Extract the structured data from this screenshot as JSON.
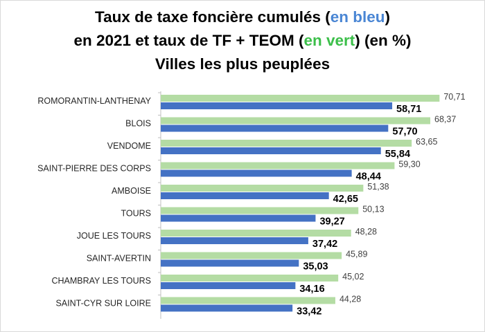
{
  "title": {
    "line1_a": "Taux de taxe foncière cumulés (",
    "line1_b": "en bleu",
    "line1_c": ")",
    "line2_a": "en 2021 et taux de TF + TEOM (",
    "line2_b": "en vert",
    "line2_c": ") (en %)",
    "line3": "Villes les plus peuplées"
  },
  "colors": {
    "blue": "#4472c4",
    "green": "#b4dca4",
    "title_blue": "#4a86d4",
    "title_green": "#3cbf4a"
  },
  "chart_data": {
    "type": "bar",
    "orientation": "horizontal",
    "title": "Taux de taxe foncière cumulés (en bleu) en 2021 et taux de TF + TEOM (en vert) (en %) Villes les plus peuplées",
    "categories": [
      "ROMORANTIN-LANTHENAY",
      "BLOIS",
      "VENDOME",
      "SAINT-PIERRE DES CORPS",
      "AMBOISE",
      "TOURS",
      "JOUE LES TOURS",
      "SAINT-AVERTIN",
      "CHAMBRAY LES TOURS",
      "SAINT-CYR SUR LOIRE"
    ],
    "series": [
      {
        "color": "#b4dca4",
        "values": [
          70.71,
          68.37,
          63.65,
          59.3,
          51.38,
          50.13,
          48.28,
          45.89,
          45.02,
          44.28
        ],
        "labels": [
          "70,71",
          "68,37",
          "63,65",
          "59,30",
          "51,38",
          "50,13",
          "48,28",
          "45,89",
          "45,02",
          "44,28"
        ]
      },
      {
        "color": "#4472c4",
        "values": [
          58.71,
          57.7,
          55.84,
          48.44,
          42.65,
          39.27,
          37.42,
          35.03,
          34.16,
          33.42
        ],
        "labels": [
          "58,71",
          "57,70",
          "55,84",
          "48,44",
          "42,65",
          "39,27",
          "37,42",
          "35,03",
          "34,16",
          "33,42"
        ]
      }
    ],
    "xlim": [
      0,
      75
    ],
    "grid": false,
    "legend": "none"
  }
}
